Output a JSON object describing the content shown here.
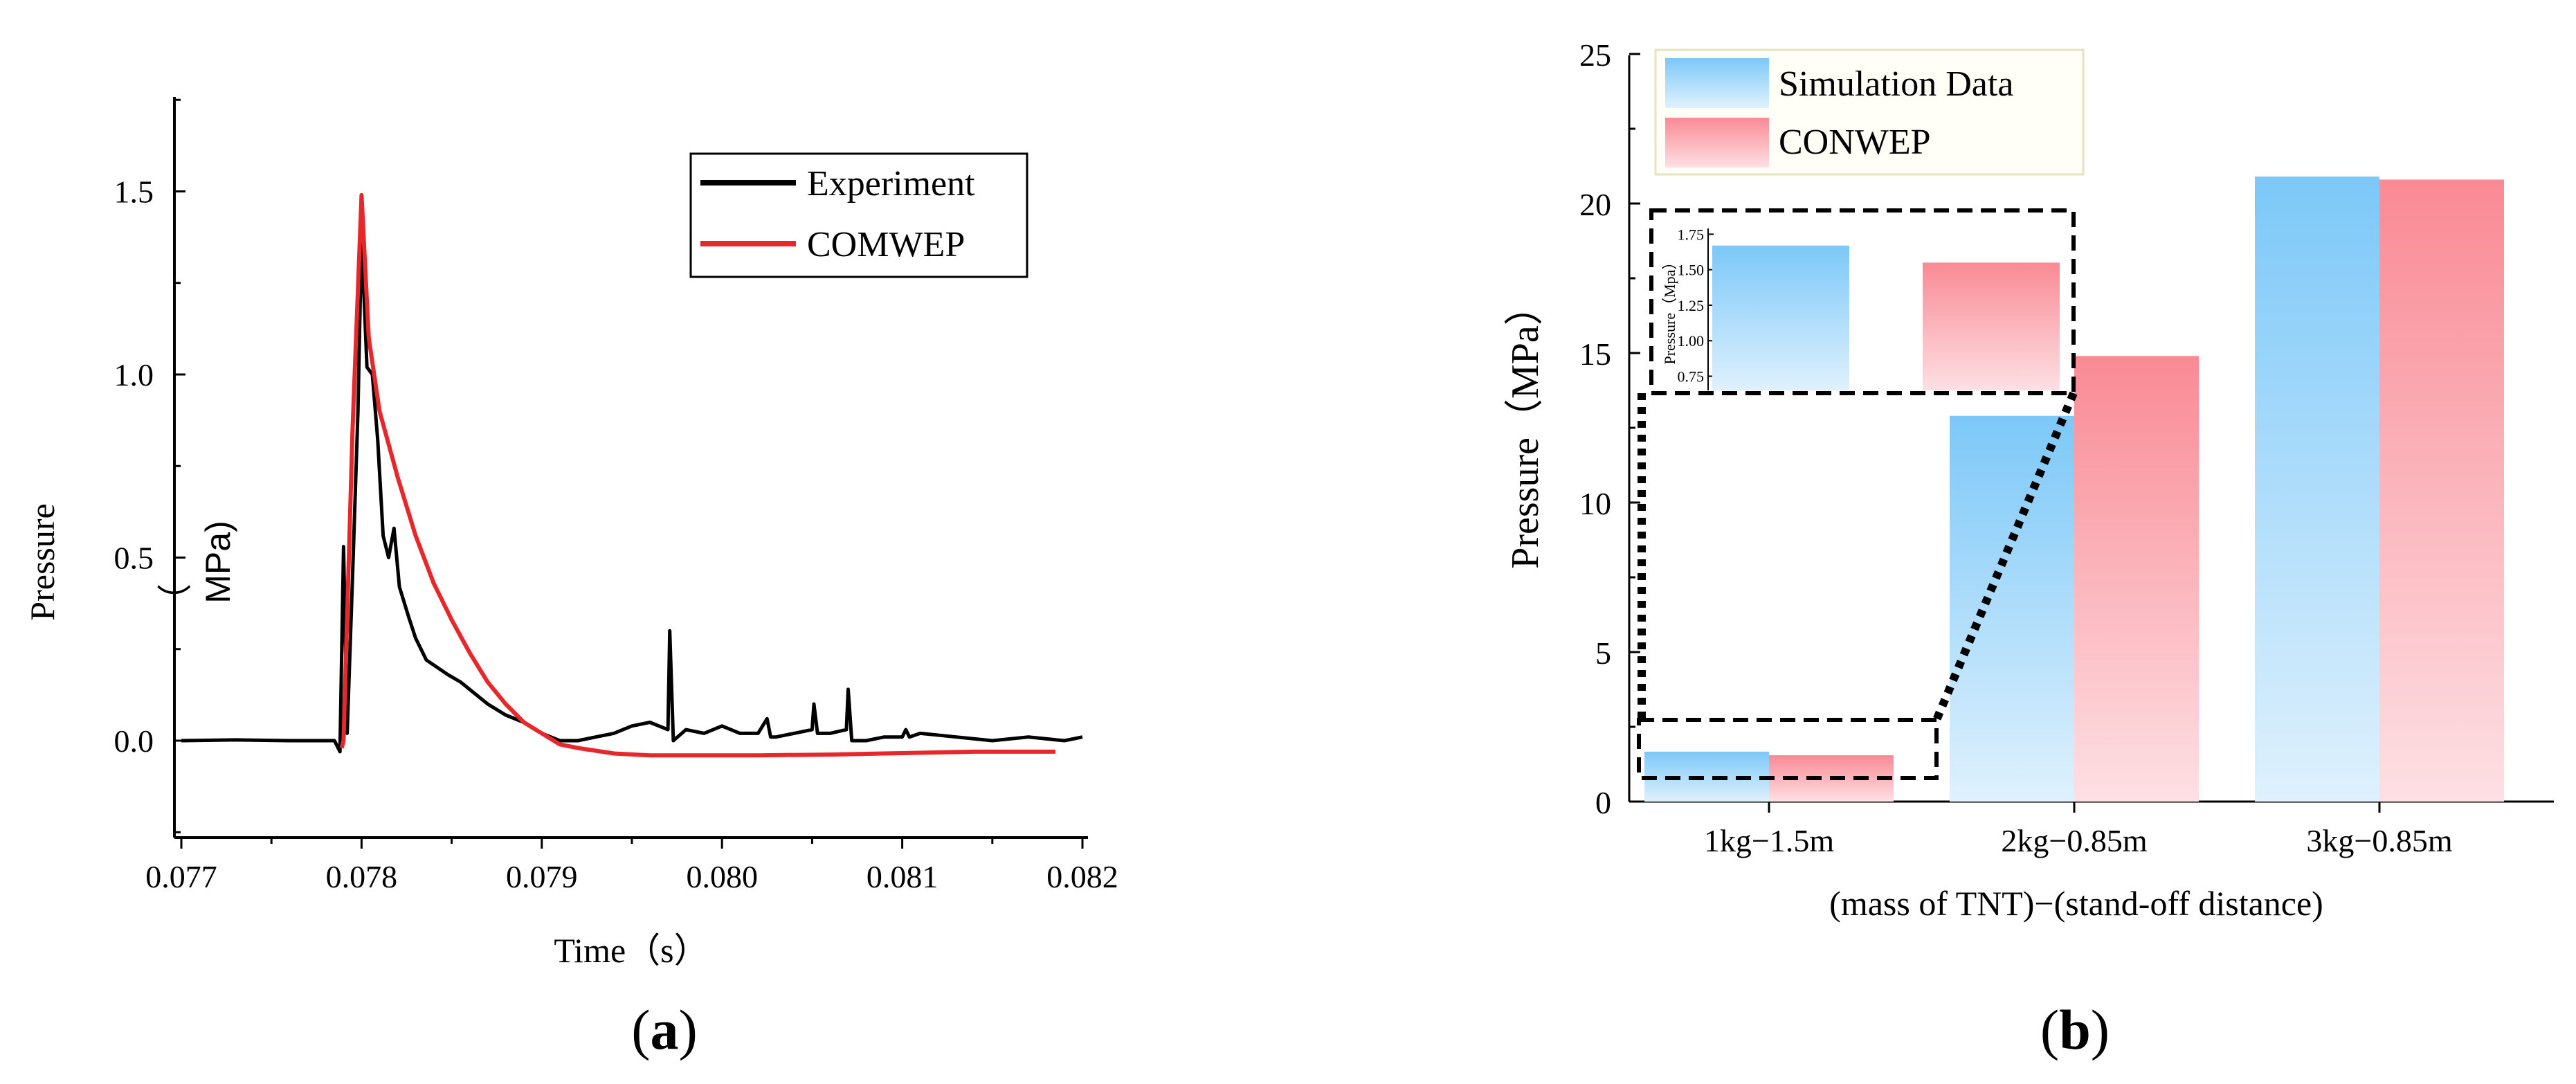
{
  "chart_data": [
    {
      "panel_label": "a",
      "type": "line",
      "title": "",
      "xlabel": "Time（s）",
      "ylabel": "Pressure",
      "ylabel_unit": "MPa)",
      "ylabel_paren": "（",
      "xlim": [
        0.077,
        0.082
      ],
      "ylim": [
        -0.25,
        1.75
      ],
      "xticks": [
        "0.077",
        "0.078",
        "0.079",
        "0.080",
        "0.081",
        "0.082"
      ],
      "yticks": [
        "0.0",
        "0.5",
        "1.0",
        "1.5"
      ],
      "legend": [
        "Experiment",
        "COMWEP"
      ],
      "legend_position": "top-right",
      "series": [
        {
          "name": "Experiment",
          "color": "#000000",
          "points": [
            [
              0.077,
              0.0
            ],
            [
              0.0773,
              0.002
            ],
            [
              0.0776,
              0.0
            ],
            [
              0.07785,
              0.0
            ],
            [
              0.07788,
              -0.03
            ],
            [
              0.0779,
              0.53
            ],
            [
              0.07792,
              0.02
            ],
            [
              0.07795,
              0.45
            ],
            [
              0.07798,
              0.9
            ],
            [
              0.078,
              1.38
            ],
            [
              0.07803,
              1.02
            ],
            [
              0.07806,
              1.0
            ],
            [
              0.07809,
              0.82
            ],
            [
              0.07812,
              0.56
            ],
            [
              0.07815,
              0.5
            ],
            [
              0.07818,
              0.58
            ],
            [
              0.07821,
              0.42
            ],
            [
              0.07826,
              0.34
            ],
            [
              0.0783,
              0.28
            ],
            [
              0.07836,
              0.22
            ],
            [
              0.07842,
              0.2
            ],
            [
              0.07848,
              0.18
            ],
            [
              0.07855,
              0.16
            ],
            [
              0.0786,
              0.14
            ],
            [
              0.0787,
              0.1
            ],
            [
              0.0788,
              0.07
            ],
            [
              0.0789,
              0.05
            ],
            [
              0.079,
              0.02
            ],
            [
              0.0791,
              0.0
            ],
            [
              0.0792,
              0.0
            ],
            [
              0.0793,
              0.01
            ],
            [
              0.0794,
              0.02
            ],
            [
              0.0795,
              0.04
            ],
            [
              0.0796,
              0.05
            ],
            [
              0.0797,
              0.03
            ],
            [
              0.07971,
              0.3
            ],
            [
              0.07973,
              0.0
            ],
            [
              0.0798,
              0.03
            ],
            [
              0.0799,
              0.02
            ],
            [
              0.08,
              0.04
            ],
            [
              0.0801,
              0.02
            ],
            [
              0.0802,
              0.02
            ],
            [
              0.08025,
              0.06
            ],
            [
              0.08027,
              0.01
            ],
            [
              0.0803,
              0.01
            ],
            [
              0.0804,
              0.02
            ],
            [
              0.0805,
              0.03
            ],
            [
              0.08051,
              0.1
            ],
            [
              0.08053,
              0.02
            ],
            [
              0.0806,
              0.02
            ],
            [
              0.08069,
              0.03
            ],
            [
              0.0807,
              0.14
            ],
            [
              0.08072,
              0.0
            ],
            [
              0.0808,
              0.0
            ],
            [
              0.0809,
              0.01
            ],
            [
              0.081,
              0.01
            ],
            [
              0.08102,
              0.03
            ],
            [
              0.08104,
              0.01
            ],
            [
              0.0811,
              0.02
            ],
            [
              0.0813,
              0.01
            ],
            [
              0.0815,
              0.0
            ],
            [
              0.0817,
              0.01
            ],
            [
              0.0819,
              0.0
            ],
            [
              0.082,
              0.01
            ]
          ]
        },
        {
          "name": "COMWEP",
          "color": "#e8272b",
          "points": [
            [
              0.07789,
              -0.02
            ],
            [
              0.0779,
              0.0
            ],
            [
              0.07795,
              0.85
            ],
            [
              0.078,
              1.49
            ],
            [
              0.07804,
              1.1
            ],
            [
              0.0781,
              0.9
            ],
            [
              0.0782,
              0.72
            ],
            [
              0.0783,
              0.56
            ],
            [
              0.0784,
              0.43
            ],
            [
              0.0785,
              0.33
            ],
            [
              0.0786,
              0.24
            ],
            [
              0.0787,
              0.16
            ],
            [
              0.0788,
              0.1
            ],
            [
              0.0789,
              0.05
            ],
            [
              0.079,
              0.02
            ],
            [
              0.0791,
              -0.01
            ],
            [
              0.0792,
              -0.02
            ],
            [
              0.0794,
              -0.035
            ],
            [
              0.0796,
              -0.04
            ],
            [
              0.0798,
              -0.04
            ],
            [
              0.0802,
              -0.04
            ],
            [
              0.0806,
              -0.038
            ],
            [
              0.081,
              -0.034
            ],
            [
              0.0814,
              -0.03
            ],
            [
              0.08185,
              -0.03
            ]
          ]
        }
      ]
    },
    {
      "panel_label": "b",
      "type": "bar",
      "title": "",
      "xlabel": "(mass of TNT)−(stand-off distance)",
      "ylabel": "Pressure（MPa）",
      "ylim": [
        0,
        25
      ],
      "yticks": [
        "0",
        "5",
        "10",
        "15",
        "20",
        "25"
      ],
      "categories": [
        "1kg−1.5m",
        "2kg−0.85m",
        "3kg−0.85m"
      ],
      "series": [
        {
          "name": "Simulation Data",
          "color": "#7cc8f8",
          "values": [
            1.67,
            12.9,
            20.9
          ]
        },
        {
          "name": "CONWEP",
          "color": "#f98a94",
          "values": [
            1.55,
            14.9,
            20.8
          ]
        }
      ],
      "legend_position": "top-left",
      "inset": {
        "ylabel": "Pressure（Mpa）",
        "ylim": [
          0.65,
          1.82
        ],
        "yticks": [
          "0.75",
          "1.00",
          "1.25",
          "1.50",
          "1.75"
        ],
        "values": [
          1.67,
          1.55
        ]
      }
    }
  ]
}
